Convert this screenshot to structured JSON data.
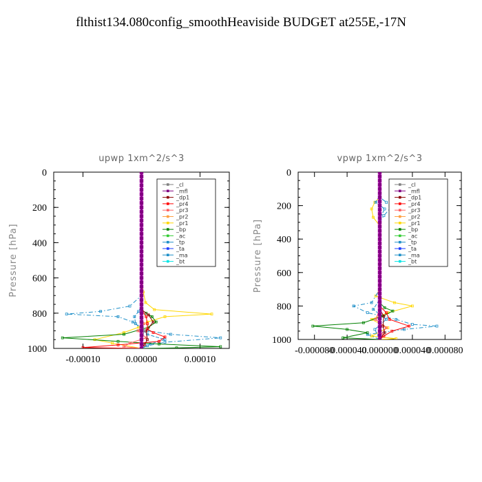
{
  "title": "flthist134.080config_smoothHeaviside  BUDGET at255E,-17N",
  "colors": {
    "_cl": "#808080",
    "_mfl": "#800080",
    "_dp1": "#8b0000",
    "_pr4": "#ff0000",
    "_pr3": "#ff6060",
    "_pr2": "#ffa040",
    "_pr1": "#ffd700",
    "_bp": "#008000",
    "_ac": "#33cc33",
    "_tp": "#1e8fc8",
    "_ta": "#1e3cff",
    "_ma": "#1e8fc8",
    "_bt": "#00e5e5"
  },
  "chart_data": [
    {
      "type": "line",
      "title": "upwp   1xm^2/s^3",
      "xlabel": "",
      "ylabel": "Pressure [hPa]",
      "xlim": [
        -0.00015,
        0.00015
      ],
      "ylim": [
        1000,
        0
      ],
      "y_inverted": true,
      "xticks": [
        -0.0001,
        0,
        0.0001
      ],
      "xtick_labels": [
        "-0.00010",
        "0.00000",
        "0.00010"
      ],
      "yticks": [
        0,
        200,
        400,
        600,
        800,
        1000
      ],
      "ytick_labels": [
        "0",
        "200",
        "400",
        "600",
        "800",
        "1000"
      ],
      "legend": [
        "_cl",
        "_mfl",
        "_dp1",
        "_pr4",
        "_pr3",
        "_pr2",
        "_pr1",
        "_bp",
        "_ac",
        "_tp",
        "_ta",
        "_ma",
        "_bt"
      ],
      "legend_position": "top-right",
      "series": [
        {
          "name": "_pr1",
          "points": [
            [
              0,
              0
            ],
            [
              0,
              600
            ],
            [
              3e-06,
              680
            ],
            [
              7e-06,
              740
            ],
            [
              2.2e-05,
              780
            ],
            [
              0.00012,
              805
            ],
            [
              4e-05,
              820
            ],
            [
              1e-05,
              850
            ],
            [
              -5e-06,
              880
            ],
            [
              -3e-05,
              910
            ],
            [
              -8e-05,
              950
            ],
            [
              -5e-05,
              970
            ],
            [
              0,
              1000
            ]
          ]
        },
        {
          "name": "_ma",
          "points": [
            [
              0,
              0
            ],
            [
              0,
              700
            ],
            [
              -2e-05,
              760
            ],
            [
              -7e-05,
              790
            ],
            [
              -0.000128,
              805
            ],
            [
              -4e-05,
              820
            ],
            [
              -1.5e-05,
              850
            ],
            [
              1e-05,
              900
            ],
            [
              5e-05,
              920
            ],
            [
              0.000135,
              940
            ],
            [
              4e-05,
              965
            ],
            [
              1e-05,
              985
            ],
            [
              0,
              1000
            ]
          ]
        },
        {
          "name": "_tp",
          "points": [
            [
              0,
              0
            ],
            [
              0,
              760
            ],
            [
              -5e-06,
              790
            ],
            [
              -1.2e-05,
              820
            ],
            [
              -1e-05,
              860
            ],
            [
              1e-05,
              920
            ],
            [
              4e-05,
              950
            ],
            [
              1.5e-05,
              975
            ],
            [
              0,
              1000
            ]
          ]
        },
        {
          "name": "_bp",
          "points": [
            [
              0,
              0
            ],
            [
              0,
              780
            ],
            [
              8e-06,
              800
            ],
            [
              1.8e-05,
              820
            ],
            [
              2.5e-05,
              850
            ],
            [
              1.2e-05,
              880
            ],
            [
              -3e-05,
              920
            ],
            [
              -0.000135,
              940
            ],
            [
              -4e-05,
              960
            ],
            [
              3e-05,
              975
            ],
            [
              0.000135,
              990
            ],
            [
              6e-05,
              997
            ],
            [
              0,
              1000
            ]
          ]
        },
        {
          "name": "_pr4",
          "points": [
            [
              0,
              0
            ],
            [
              0,
              780
            ],
            [
              8e-06,
              820
            ],
            [
              1e-05,
              860
            ],
            [
              1e-05,
              890
            ],
            [
              2e-05,
              910
            ],
            [
              4e-05,
              935
            ],
            [
              3e-05,
              960
            ],
            [
              -4e-05,
              980
            ],
            [
              -0.0001,
              995
            ],
            [
              0,
              1000
            ]
          ]
        },
        {
          "name": "_pr3",
          "points": [
            [
              0,
              0
            ],
            [
              0,
              820
            ],
            [
              4e-06,
              860
            ],
            [
              -6e-06,
              900
            ],
            [
              8e-06,
              940
            ],
            [
              -2e-05,
              970
            ],
            [
              -3e-05,
              990
            ],
            [
              0,
              1000
            ]
          ]
        },
        {
          "name": "_dp1",
          "points": [
            [
              0,
              0
            ],
            [
              0,
              780
            ],
            [
              1.2e-05,
              810
            ],
            [
              2e-05,
              850
            ],
            [
              8e-06,
              900
            ],
            [
              1e-05,
              950
            ],
            [
              5e-06,
              980
            ],
            [
              0,
              1000
            ]
          ]
        },
        {
          "name": "_cl",
          "points": [
            [
              0,
              0
            ],
            [
              0,
              800
            ],
            [
              4e-06,
              900
            ],
            [
              0,
              1000
            ]
          ]
        },
        {
          "name": "_mfl",
          "points": [
            [
              0,
              0
            ],
            [
              0,
              1000
            ]
          ]
        }
      ]
    },
    {
      "type": "line",
      "title": "vpwp   1xm^2/s^3",
      "xlabel": "",
      "ylabel": "Pressure [hPa]",
      "xlim": [
        -0.0001,
        0.0001
      ],
      "ylim": [
        1000,
        0
      ],
      "y_inverted": true,
      "xticks": [
        -8e-05,
        -4e-05,
        0,
        4e-05,
        8e-05
      ],
      "xtick_labels": [
        "-0.000080",
        "-0.000040",
        "0.000000",
        "0.000040",
        "0.000080"
      ],
      "yticks": [
        0,
        200,
        400,
        600,
        800,
        1000
      ],
      "ytick_labels": [
        "0",
        "200",
        "400",
        "600",
        "800",
        "1000"
      ],
      "legend": [
        "_cl",
        "_mfl",
        "_dp1",
        "_pr4",
        "_pr3",
        "_pr2",
        "_pr1",
        "_bp",
        "_ac",
        "_tp",
        "_ta",
        "_ma",
        "_bt"
      ],
      "legend_position": "top-right",
      "series": [
        {
          "name": "_pr1",
          "points": [
            [
              0,
              0
            ],
            [
              0,
              150
            ],
            [
              -6e-06,
              180
            ],
            [
              -1e-05,
              220
            ],
            [
              -8e-06,
              270
            ],
            [
              0,
              320
            ],
            [
              0,
              700
            ],
            [
              -5e-06,
              740
            ],
            [
              1.8e-05,
              780
            ],
            [
              4e-05,
              800
            ],
            [
              1e-05,
              840
            ],
            [
              -1e-05,
              880
            ],
            [
              1e-05,
              930
            ],
            [
              -1e-05,
              980
            ],
            [
              2e-05,
              995
            ],
            [
              0,
              1000
            ]
          ]
        },
        {
          "name": "_ma",
          "points": [
            [
              0,
              0
            ],
            [
              0,
              150
            ],
            [
              8e-06,
              180
            ],
            [
              1.4e-05,
              210
            ],
            [
              5e-06,
              260
            ],
            [
              0,
              300
            ],
            [
              0,
              700
            ],
            [
              -1e-05,
              780
            ],
            [
              -3.2e-05,
              800
            ],
            [
              -1.5e-05,
              840
            ],
            [
              2e-05,
              880
            ],
            [
              4e-05,
              910
            ],
            [
              7e-05,
              920
            ],
            [
              3e-05,
              940
            ],
            [
              -1.5e-05,
              970
            ],
            [
              0,
              1000
            ]
          ]
        },
        {
          "name": "_tp",
          "points": [
            [
              0,
              0
            ],
            [
              0,
              140
            ],
            [
              -5e-06,
              180
            ],
            [
              6e-06,
              220
            ],
            [
              0,
              280
            ],
            [
              0,
              760
            ],
            [
              -8e-06,
              820
            ],
            [
              8e-06,
              880
            ],
            [
              -6e-06,
              940
            ],
            [
              0,
              1000
            ]
          ]
        },
        {
          "name": "_bp",
          "points": [
            [
              0,
              0
            ],
            [
              0,
              780
            ],
            [
              6e-06,
              810
            ],
            [
              1.6e-05,
              830
            ],
            [
              4e-06,
              860
            ],
            [
              -2e-05,
              900
            ],
            [
              -8.2e-05,
              920
            ],
            [
              -4e-05,
              940
            ],
            [
              -1.5e-05,
              960
            ],
            [
              -4.5e-05,
              990
            ],
            [
              0,
              1000
            ]
          ]
        },
        {
          "name": "_pr4",
          "points": [
            [
              0,
              0
            ],
            [
              0,
              800
            ],
            [
              8e-06,
              840
            ],
            [
              1.2e-05,
              880
            ],
            [
              3.6e-05,
              920
            ],
            [
              1.5e-05,
              950
            ],
            [
              5e-06,
              980
            ],
            [
              0,
              1000
            ]
          ]
        },
        {
          "name": "_pr3",
          "points": [
            [
              0,
              0
            ],
            [
              0,
              820
            ],
            [
              -5e-06,
              880
            ],
            [
              8e-06,
              930
            ],
            [
              2e-06,
              970
            ],
            [
              0,
              1000
            ]
          ]
        },
        {
          "name": "_dp1",
          "points": [
            [
              0,
              0
            ],
            [
              0,
              820
            ],
            [
              5e-06,
              860
            ],
            [
              4e-06,
              920
            ],
            [
              6e-06,
              960
            ],
            [
              0,
              1000
            ]
          ]
        },
        {
          "name": "_cl",
          "points": [
            [
              0,
              0
            ],
            [
              0,
              1000
            ]
          ]
        },
        {
          "name": "_mfl",
          "points": [
            [
              0,
              0
            ],
            [
              0,
              1000
            ]
          ]
        }
      ]
    }
  ]
}
